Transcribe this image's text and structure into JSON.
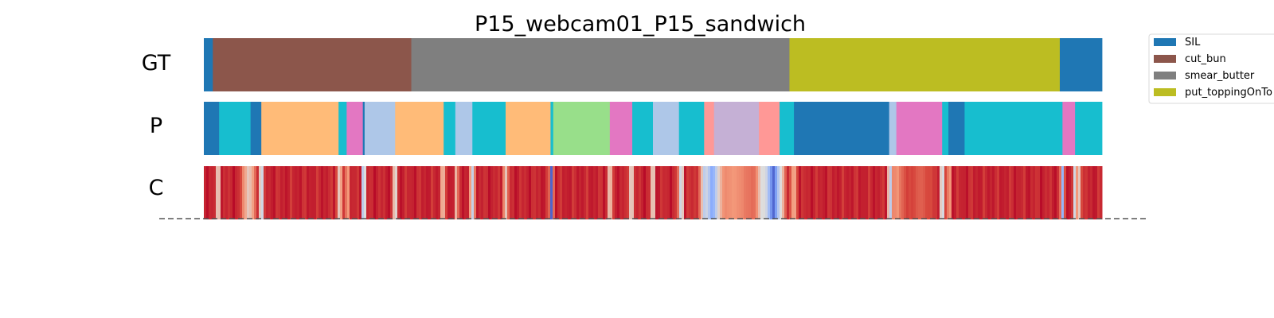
{
  "chart_data": {
    "type": "segmentation-timeline",
    "title": "P15_webcam01_P15_sandwich",
    "x_range": [
      0,
      1.0
    ],
    "rows": [
      {
        "label": "GT",
        "segments": [
          {
            "start": 0.0,
            "end": 0.01,
            "class": "SIL"
          },
          {
            "start": 0.01,
            "end": 0.231,
            "class": "cut_bun"
          },
          {
            "start": 0.231,
            "end": 0.652,
            "class": "smear_butter"
          },
          {
            "start": 0.652,
            "end": 0.953,
            "class": "put_toppingOnTop"
          },
          {
            "start": 0.953,
            "end": 1.0,
            "class": "SIL"
          }
        ]
      },
      {
        "label": "P",
        "segments": [
          {
            "start": 0.0,
            "end": 0.017,
            "color": "#1f77b4"
          },
          {
            "start": 0.017,
            "end": 0.052,
            "color": "#17becf"
          },
          {
            "start": 0.052,
            "end": 0.064,
            "color": "#1f77b4"
          },
          {
            "start": 0.064,
            "end": 0.15,
            "color": "#ffbb78"
          },
          {
            "start": 0.15,
            "end": 0.159,
            "color": "#17becf"
          },
          {
            "start": 0.159,
            "end": 0.177,
            "color": "#e377c2"
          },
          {
            "start": 0.177,
            "end": 0.179,
            "color": "#1f77b4"
          },
          {
            "start": 0.179,
            "end": 0.213,
            "color": "#aec7e8"
          },
          {
            "start": 0.213,
            "end": 0.267,
            "color": "#ffbb78"
          },
          {
            "start": 0.267,
            "end": 0.28,
            "color": "#17becf"
          },
          {
            "start": 0.28,
            "end": 0.299,
            "color": "#aec7e8"
          },
          {
            "start": 0.299,
            "end": 0.336,
            "color": "#17becf"
          },
          {
            "start": 0.336,
            "end": 0.386,
            "color": "#ffbb78"
          },
          {
            "start": 0.386,
            "end": 0.389,
            "color": "#17becf"
          },
          {
            "start": 0.389,
            "end": 0.452,
            "color": "#98df8a"
          },
          {
            "start": 0.452,
            "end": 0.477,
            "color": "#e377c2"
          },
          {
            "start": 0.477,
            "end": 0.5,
            "color": "#17becf"
          },
          {
            "start": 0.5,
            "end": 0.529,
            "color": "#aec7e8"
          },
          {
            "start": 0.529,
            "end": 0.557,
            "color": "#17becf"
          },
          {
            "start": 0.557,
            "end": 0.568,
            "color": "#ff9896"
          },
          {
            "start": 0.568,
            "end": 0.618,
            "color": "#c5b0d5"
          },
          {
            "start": 0.618,
            "end": 0.641,
            "color": "#ff9896"
          },
          {
            "start": 0.641,
            "end": 0.657,
            "color": "#17becf"
          },
          {
            "start": 0.657,
            "end": 0.763,
            "color": "#1f77b4"
          },
          {
            "start": 0.763,
            "end": 0.771,
            "color": "#aec7e8"
          },
          {
            "start": 0.771,
            "end": 0.822,
            "color": "#e377c2"
          },
          {
            "start": 0.822,
            "end": 0.829,
            "color": "#17becf"
          },
          {
            "start": 0.829,
            "end": 0.847,
            "color": "#1f77b4"
          },
          {
            "start": 0.847,
            "end": 0.956,
            "color": "#17becf"
          },
          {
            "start": 0.956,
            "end": 0.97,
            "color": "#e377c2"
          },
          {
            "start": 0.97,
            "end": 1.0,
            "color": "#17becf"
          }
        ]
      },
      {
        "label": "C",
        "colormap": "coolwarm",
        "range": [
          0,
          1
        ],
        "baseline": 0.95,
        "dips": [
          {
            "at": 0.016,
            "width": 0.003,
            "value": 0.35
          },
          {
            "at": 0.05,
            "width": 0.01,
            "value": 0.55
          },
          {
            "at": 0.064,
            "width": 0.003,
            "value": 0.15
          },
          {
            "at": 0.151,
            "width": 0.004,
            "value": 0.5
          },
          {
            "at": 0.16,
            "width": 0.003,
            "value": 0.65
          },
          {
            "at": 0.178,
            "width": 0.003,
            "value": 0.05
          },
          {
            "at": 0.213,
            "width": 0.003,
            "value": 0.3
          },
          {
            "at": 0.266,
            "width": 0.004,
            "value": 0.55
          },
          {
            "at": 0.281,
            "width": 0.003,
            "value": 0.6
          },
          {
            "at": 0.299,
            "width": 0.004,
            "value": 0.4
          },
          {
            "at": 0.336,
            "width": 0.004,
            "value": 0.55
          },
          {
            "at": 0.387,
            "width": 0.003,
            "value": 0.05
          },
          {
            "at": 0.452,
            "width": 0.004,
            "value": 0.5
          },
          {
            "at": 0.476,
            "width": 0.004,
            "value": 0.4
          },
          {
            "at": 0.5,
            "width": 0.004,
            "value": 0.45
          },
          {
            "at": 0.53,
            "width": 0.003,
            "value": 0.55
          },
          {
            "at": 0.532,
            "width": 0.003,
            "value": 0.3
          },
          {
            "at": 0.557,
            "width": 0.004,
            "value": 0.55
          },
          {
            "at": 0.566,
            "width": 0.016,
            "value": 0.2
          },
          {
            "at": 0.59,
            "width": 0.05,
            "value": 0.75
          },
          {
            "at": 0.62,
            "width": 0.006,
            "value": 0.55
          },
          {
            "at": 0.634,
            "width": 0.016,
            "value": 0.05
          },
          {
            "at": 0.657,
            "width": 0.005,
            "value": 0.65
          },
          {
            "at": 0.764,
            "width": 0.004,
            "value": 0.3
          },
          {
            "at": 0.772,
            "width": 0.012,
            "value": 0.75
          },
          {
            "at": 0.798,
            "width": 0.02,
            "value": 0.85
          },
          {
            "at": 0.822,
            "width": 0.004,
            "value": 0.3
          },
          {
            "at": 0.83,
            "width": 0.003,
            "value": 0.65
          },
          {
            "at": 0.956,
            "width": 0.003,
            "value": 0.25
          },
          {
            "at": 0.97,
            "width": 0.003,
            "value": 0.35
          },
          {
            "at": 0.975,
            "width": 0.003,
            "value": 0.55
          }
        ]
      }
    ],
    "legend": {
      "position": "top-right",
      "entries": [
        {
          "label": "SIL",
          "color": "#1f77b4"
        },
        {
          "label": "cut_bun",
          "color": "#8c564b"
        },
        {
          "label": "smear_butter",
          "color": "#7f7f7f"
        },
        {
          "label": "put_toppingOnTo",
          "color": "#bcbd22"
        }
      ]
    },
    "class_colors": {
      "SIL": "#1f77b4",
      "cut_bun": "#8c564b",
      "smear_butter": "#7f7f7f",
      "put_toppingOnTop": "#bcbd22"
    },
    "reference_line": {
      "style": "dashed",
      "color": "#555555"
    }
  }
}
